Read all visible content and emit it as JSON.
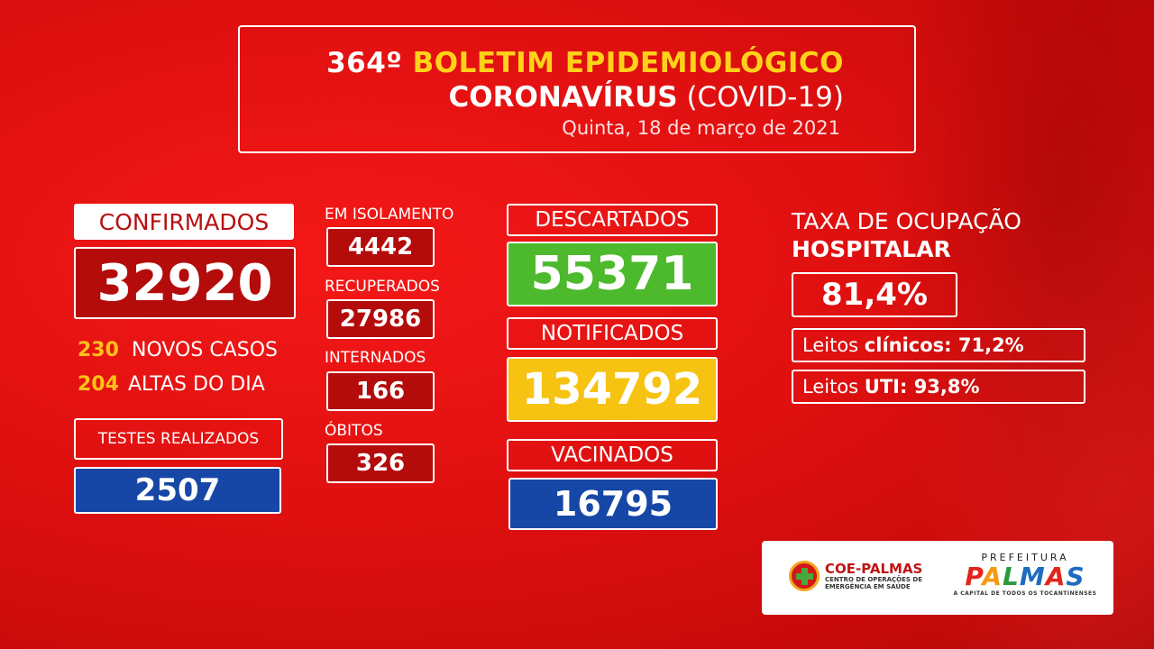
{
  "header": {
    "number": "364º",
    "title": "BOLETIM EPIDEMIOLÓGICO",
    "subtitle_bold": "CORONAVÍRUS",
    "subtitle_rest": " (COVID-19)",
    "date": "Quinta, 18 de março de 2021"
  },
  "confirmados": {
    "label": "CONFIRMADOS",
    "value": "32920"
  },
  "novos_casos": {
    "num": "230",
    "label": "NOVOS CASOS"
  },
  "altas": {
    "num": "204",
    "label": "ALTAS DO DIA"
  },
  "testes": {
    "label": "TESTES REALIZADOS",
    "value": "2507"
  },
  "isolamento": {
    "label": "EM ISOLAMENTO",
    "value": "4442"
  },
  "recuperados": {
    "label": "RECUPERADOS",
    "value": "27986"
  },
  "internados": {
    "label": "INTERNADOS",
    "value": "166"
  },
  "obitos": {
    "label": "ÓBITOS",
    "value": "326"
  },
  "descartados": {
    "label": "DESCARTADOS",
    "value": "55371"
  },
  "notificados": {
    "label": "NOTIFICADOS",
    "value": "134792"
  },
  "vacinados": {
    "label": "VACINADOS",
    "value": "16795"
  },
  "taxa": {
    "line1": "TAXA DE OCUPAÇÃO",
    "line2": "HOSPITALAR",
    "value": "81,4%",
    "clinicos_prefix": "Leitos ",
    "clinicos_bold": "clínicos: 71,2%",
    "uti_prefix": "Leitos ",
    "uti_bold": "UTI: 93,8%"
  },
  "logos": {
    "coe_name": "COE-PALMAS",
    "coe_sub1": "CENTRO DE OPERAÇÕES DE",
    "coe_sub2": "EMERGÊNCIA EM SAÚDE",
    "pref_top": "PREFEITURA",
    "pref_letters": [
      "P",
      "A",
      "L",
      "M",
      "A",
      "S"
    ],
    "pref_sub": "A CAPITAL DE TODOS OS TOCANTINENSES"
  }
}
